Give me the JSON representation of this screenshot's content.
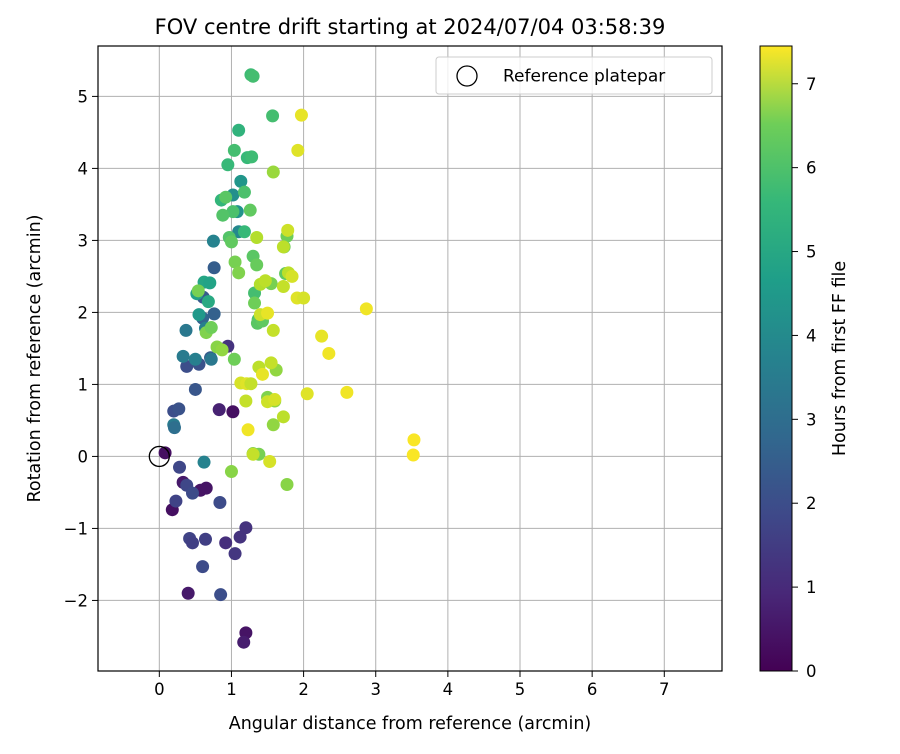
{
  "chart_data": {
    "type": "scatter",
    "title": "FOV centre drift starting at 2024/07/04 03:58:39",
    "xlabel": "Angular distance from reference (arcmin)",
    "ylabel": "Rotation from reference (arcmin)",
    "xlim": [
      -0.85,
      7.8
    ],
    "ylim": [
      -2.98,
      5.7
    ],
    "xticks": [
      0,
      1,
      2,
      3,
      4,
      5,
      6,
      7
    ],
    "yticks": [
      -2,
      -1,
      0,
      1,
      2,
      3,
      4,
      5
    ],
    "grid": true,
    "legend": {
      "placement": "top-right",
      "entries": [
        "Reference platepar"
      ]
    },
    "reference_point": {
      "x": 0,
      "y": 0
    },
    "colorbar": {
      "label": "Hours from first FF file",
      "range": [
        0,
        7.45
      ],
      "ticks": [
        0,
        1,
        2,
        3,
        4,
        5,
        6,
        7
      ],
      "colormap": "viridis"
    },
    "points": [
      {
        "x": 0.08,
        "y": 0.05,
        "h": 0.3
      },
      {
        "x": 0.18,
        "y": -0.74,
        "h": 0.3
      },
      {
        "x": 0.33,
        "y": -0.36,
        "h": 0.5
      },
      {
        "x": 0.4,
        "y": -1.9,
        "h": 0.5
      },
      {
        "x": 0.57,
        "y": -0.47,
        "h": 0.4
      },
      {
        "x": 0.65,
        "y": -0.44,
        "h": 0.4
      },
      {
        "x": 0.83,
        "y": 0.65,
        "h": 0.7
      },
      {
        "x": 1.02,
        "y": 0.62,
        "h": 0.3
      },
      {
        "x": 1.2,
        "y": -2.45,
        "h": 0.4
      },
      {
        "x": 1.17,
        "y": -2.58,
        "h": 0.6
      },
      {
        "x": 0.92,
        "y": -1.2,
        "h": 1.0
      },
      {
        "x": 1.05,
        "y": -1.35,
        "h": 1.2
      },
      {
        "x": 1.12,
        "y": -1.12,
        "h": 1.1
      },
      {
        "x": 1.2,
        "y": -0.99,
        "h": 1.1
      },
      {
        "x": 0.95,
        "y": 1.53,
        "h": 1.1
      },
      {
        "x": 0.64,
        "y": -1.15,
        "h": 1.4
      },
      {
        "x": 0.42,
        "y": -1.14,
        "h": 1.5
      },
      {
        "x": 0.46,
        "y": -1.2,
        "h": 1.4
      },
      {
        "x": 0.23,
        "y": -0.62,
        "h": 1.5
      },
      {
        "x": 0.28,
        "y": -0.15,
        "h": 1.6
      },
      {
        "x": 0.38,
        "y": -0.4,
        "h": 1.6
      },
      {
        "x": 0.46,
        "y": -0.51,
        "h": 1.7
      },
      {
        "x": 0.6,
        "y": -1.53,
        "h": 1.7
      },
      {
        "x": 0.85,
        "y": -1.92,
        "h": 1.8
      },
      {
        "x": 0.84,
        "y": -0.64,
        "h": 1.7
      },
      {
        "x": 0.2,
        "y": 0.63,
        "h": 1.8
      },
      {
        "x": 0.27,
        "y": 0.66,
        "h": 1.9
      },
      {
        "x": 0.5,
        "y": 0.93,
        "h": 2.0
      },
      {
        "x": 0.38,
        "y": 1.25,
        "h": 1.8
      },
      {
        "x": 0.55,
        "y": 1.28,
        "h": 1.9
      },
      {
        "x": 0.71,
        "y": 1.37,
        "h": 2.2
      },
      {
        "x": 0.61,
        "y": 2.21,
        "h": 2.1
      },
      {
        "x": 0.76,
        "y": 2.62,
        "h": 2.2
      },
      {
        "x": 0.76,
        "y": 1.98,
        "h": 2.3
      },
      {
        "x": 0.6,
        "y": 1.92,
        "h": 2.4
      },
      {
        "x": 0.2,
        "y": 0.44,
        "h": 3.1
      },
      {
        "x": 0.21,
        "y": 0.4,
        "h": 2.7
      },
      {
        "x": 0.37,
        "y": 1.75,
        "h": 3.0
      },
      {
        "x": 0.33,
        "y": 1.39,
        "h": 3.1
      },
      {
        "x": 0.5,
        "y": 1.35,
        "h": 3.2
      },
      {
        "x": 0.62,
        "y": -0.08,
        "h": 3.3
      },
      {
        "x": 0.64,
        "y": 1.78,
        "h": 3.2
      },
      {
        "x": 0.72,
        "y": 1.35,
        "h": 3.0
      },
      {
        "x": 0.75,
        "y": 2.99,
        "h": 3.3
      },
      {
        "x": 1.02,
        "y": 3.63,
        "h": 3.7
      },
      {
        "x": 1.08,
        "y": 3.4,
        "h": 3.8
      },
      {
        "x": 1.1,
        "y": 3.12,
        "h": 3.5
      },
      {
        "x": 1.13,
        "y": 3.82,
        "h": 3.9
      },
      {
        "x": 0.52,
        "y": 2.26,
        "h": 4.2
      },
      {
        "x": 0.62,
        "y": 2.42,
        "h": 4.4
      },
      {
        "x": 0.7,
        "y": 2.41,
        "h": 4.3
      },
      {
        "x": 0.55,
        "y": 1.97,
        "h": 4.0
      },
      {
        "x": 0.68,
        "y": 2.15,
        "h": 4.5
      },
      {
        "x": 0.86,
        "y": 3.56,
        "h": 4.9
      },
      {
        "x": 1.1,
        "y": 4.53,
        "h": 4.8
      },
      {
        "x": 0.95,
        "y": 4.05,
        "h": 5.0
      },
      {
        "x": 1.04,
        "y": 4.25,
        "h": 5.2
      },
      {
        "x": 1.22,
        "y": 4.15,
        "h": 5.0
      },
      {
        "x": 1.28,
        "y": 4.16,
        "h": 5.1
      },
      {
        "x": 1.27,
        "y": 5.3,
        "h": 5.1
      },
      {
        "x": 1.3,
        "y": 5.28,
        "h": 5.2
      },
      {
        "x": 1.57,
        "y": 4.73,
        "h": 5.2
      },
      {
        "x": 1.18,
        "y": 3.67,
        "h": 5.3
      },
      {
        "x": 1.26,
        "y": 3.42,
        "h": 5.6
      },
      {
        "x": 1.02,
        "y": 3.4,
        "h": 5.3
      },
      {
        "x": 0.88,
        "y": 3.35,
        "h": 5.4
      },
      {
        "x": 0.92,
        "y": 3.6,
        "h": 5.5
      },
      {
        "x": 0.97,
        "y": 3.04,
        "h": 5.4
      },
      {
        "x": 1.0,
        "y": 2.98,
        "h": 5.6
      },
      {
        "x": 1.18,
        "y": 3.12,
        "h": 5.0
      },
      {
        "x": 1.32,
        "y": 2.27,
        "h": 5.2
      },
      {
        "x": 1.37,
        "y": 1.9,
        "h": 5.3
      },
      {
        "x": 1.36,
        "y": 1.85,
        "h": 5.5
      },
      {
        "x": 1.43,
        "y": 1.88,
        "h": 5.6
      },
      {
        "x": 1.3,
        "y": 2.78,
        "h": 5.5
      },
      {
        "x": 1.35,
        "y": 2.66,
        "h": 5.7
      },
      {
        "x": 1.32,
        "y": 2.13,
        "h": 5.8
      },
      {
        "x": 1.55,
        "y": 2.4,
        "h": 5.9
      },
      {
        "x": 1.73,
        "y": 2.91,
        "h": 5.8
      },
      {
        "x": 1.77,
        "y": 3.06,
        "h": 5.8
      },
      {
        "x": 1.75,
        "y": 2.54,
        "h": 5.6
      },
      {
        "x": 0.54,
        "y": 2.3,
        "h": 5.9
      },
      {
        "x": 0.65,
        "y": 1.72,
        "h": 6.0
      },
      {
        "x": 0.72,
        "y": 1.79,
        "h": 5.8
      },
      {
        "x": 0.8,
        "y": 1.52,
        "h": 6.1
      },
      {
        "x": 0.87,
        "y": 1.48,
        "h": 6.2
      },
      {
        "x": 1.04,
        "y": 1.35,
        "h": 5.8
      },
      {
        "x": 1.05,
        "y": 2.7,
        "h": 5.9
      },
      {
        "x": 1.1,
        "y": 2.55,
        "h": 6.0
      },
      {
        "x": 1.0,
        "y": -0.21,
        "h": 6.1
      },
      {
        "x": 1.3,
        "y": 0.04,
        "h": 6.0
      },
      {
        "x": 1.38,
        "y": 0.03,
        "h": 5.9
      },
      {
        "x": 1.5,
        "y": 0.82,
        "h": 6.0
      },
      {
        "x": 1.6,
        "y": 0.77,
        "h": 6.2
      },
      {
        "x": 1.62,
        "y": 1.2,
        "h": 6.2
      },
      {
        "x": 1.58,
        "y": 0.44,
        "h": 6.2
      },
      {
        "x": 1.77,
        "y": -0.39,
        "h": 6.1
      },
      {
        "x": 1.58,
        "y": 3.95,
        "h": 6.3
      },
      {
        "x": 1.35,
        "y": 3.04,
        "h": 6.6
      },
      {
        "x": 1.72,
        "y": 2.91,
        "h": 6.7
      },
      {
        "x": 1.78,
        "y": 3.14,
        "h": 6.9
      },
      {
        "x": 1.72,
        "y": 2.36,
        "h": 6.8
      },
      {
        "x": 1.79,
        "y": 2.55,
        "h": 6.7
      },
      {
        "x": 1.84,
        "y": 2.5,
        "h": 7.0
      },
      {
        "x": 1.91,
        "y": 2.2,
        "h": 7.1
      },
      {
        "x": 1.4,
        "y": 2.39,
        "h": 6.6
      },
      {
        "x": 1.47,
        "y": 2.44,
        "h": 6.7
      },
      {
        "x": 1.58,
        "y": 1.75,
        "h": 6.8
      },
      {
        "x": 1.4,
        "y": 1.97,
        "h": 6.9
      },
      {
        "x": 1.5,
        "y": 1.99,
        "h": 7.2
      },
      {
        "x": 1.55,
        "y": 1.3,
        "h": 6.8
      },
      {
        "x": 1.38,
        "y": 1.24,
        "h": 6.7
      },
      {
        "x": 1.43,
        "y": 1.14,
        "h": 7.2
      },
      {
        "x": 1.13,
        "y": 1.02,
        "h": 7.0
      },
      {
        "x": 1.21,
        "y": 1.01,
        "h": 7.1
      },
      {
        "x": 1.27,
        "y": 1.01,
        "h": 6.8
      },
      {
        "x": 1.2,
        "y": 0.77,
        "h": 6.8
      },
      {
        "x": 1.5,
        "y": 0.76,
        "h": 6.9
      },
      {
        "x": 1.6,
        "y": 0.79,
        "h": 7.0
      },
      {
        "x": 1.72,
        "y": 0.55,
        "h": 6.7
      },
      {
        "x": 1.23,
        "y": 0.37,
        "h": 7.3
      },
      {
        "x": 1.3,
        "y": 0.03,
        "h": 6.8
      },
      {
        "x": 1.53,
        "y": -0.07,
        "h": 7.0
      },
      {
        "x": 1.97,
        "y": 4.74,
        "h": 7.2
      },
      {
        "x": 1.92,
        "y": 4.25,
        "h": 7.1
      },
      {
        "x": 2.0,
        "y": 2.2,
        "h": 7.0
      },
      {
        "x": 2.25,
        "y": 1.67,
        "h": 7.2
      },
      {
        "x": 2.35,
        "y": 1.43,
        "h": 7.3
      },
      {
        "x": 2.05,
        "y": 0.87,
        "h": 7.1
      },
      {
        "x": 2.6,
        "y": 0.89,
        "h": 7.3
      },
      {
        "x": 2.87,
        "y": 2.05,
        "h": 7.3
      },
      {
        "x": 3.53,
        "y": 0.23,
        "h": 7.4
      },
      {
        "x": 3.52,
        "y": 0.02,
        "h": 7.4
      }
    ]
  }
}
